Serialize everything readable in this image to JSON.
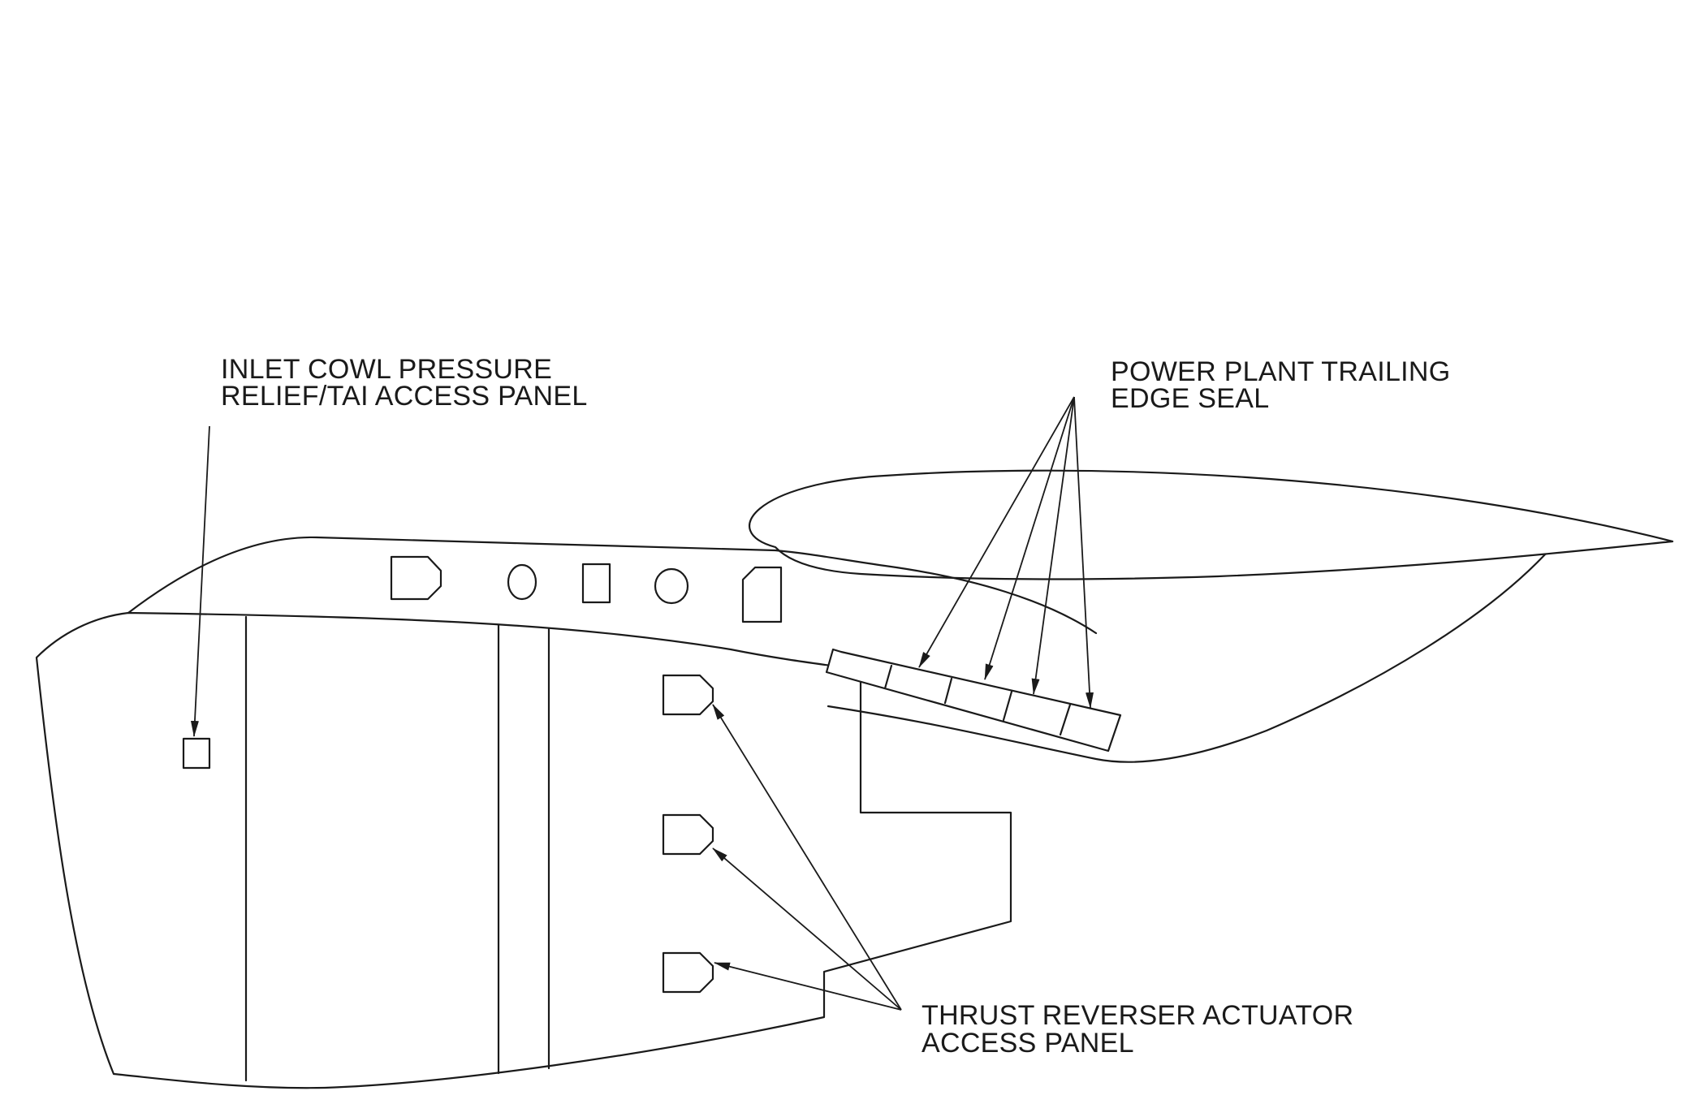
{
  "callouts": {
    "inlet_cowl": {
      "line1": "INLET COWL PRESSURE",
      "line2": "RELIEF/TAI ACCESS PANEL"
    },
    "trailing_edge_seal": {
      "line1": "POWER PLANT TRAILING",
      "line2": "EDGE SEAL"
    },
    "thrust_reverser": {
      "line1": "THRUST REVERSER ACTUATOR",
      "line2": "ACCESS PANEL"
    }
  },
  "colors": {
    "line": "#1a1a1a",
    "background": "#ffffff"
  }
}
